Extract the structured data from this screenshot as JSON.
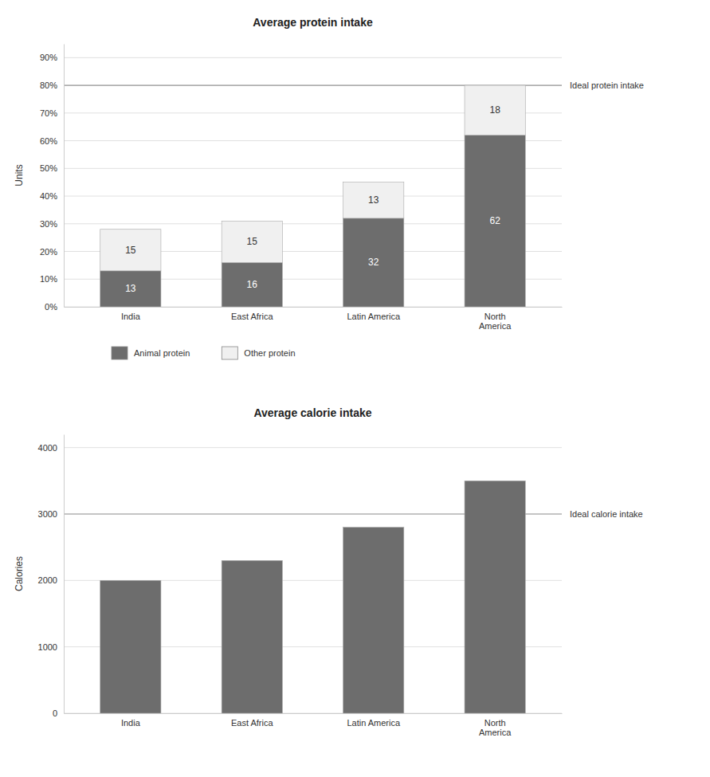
{
  "chart_data": [
    {
      "type": "bar",
      "stacked": true,
      "title": "Average protein intake",
      "ylabel": "Units",
      "categories": [
        "India",
        "East Africa",
        "Latin America",
        "North\nAmerica"
      ],
      "series": [
        {
          "name": "Animal protein",
          "color": "#6d6d6d",
          "values": [
            13,
            16,
            32,
            62
          ]
        },
        {
          "name": "Other protein",
          "color": "#f0f0f0",
          "values": [
            15,
            15,
            13,
            18
          ]
        }
      ],
      "ylim": [
        0,
        95
      ],
      "yticks": [
        {
          "value": 0,
          "label": "0%"
        },
        {
          "value": 10,
          "label": "10%"
        },
        {
          "value": 20,
          "label": "20%"
        },
        {
          "value": 30,
          "label": "30%"
        },
        {
          "value": 40,
          "label": "40%"
        },
        {
          "value": 50,
          "label": "50%"
        },
        {
          "value": 60,
          "label": "60%"
        },
        {
          "value": 70,
          "label": "70%"
        },
        {
          "value": 80,
          "label": "80%"
        },
        {
          "value": 90,
          "label": "90%"
        }
      ],
      "grid": true,
      "data_labels": true,
      "legend": "bottom",
      "annotations": [
        {
          "text": "Ideal protein intake",
          "y": 80
        }
      ]
    },
    {
      "type": "bar",
      "title": "Average calorie intake",
      "ylabel": "Calories",
      "categories": [
        "India",
        "East Africa",
        "Latin America",
        "North\nAmerica"
      ],
      "values": [
        2000,
        2300,
        2800,
        3500
      ],
      "color": "#6d6d6d",
      "ylim": [
        0,
        4200
      ],
      "yticks": [
        0,
        1000,
        2000,
        3000,
        4000
      ],
      "grid": true,
      "annotations": [
        {
          "text": "Ideal calorie intake",
          "y": 3000
        }
      ]
    }
  ]
}
